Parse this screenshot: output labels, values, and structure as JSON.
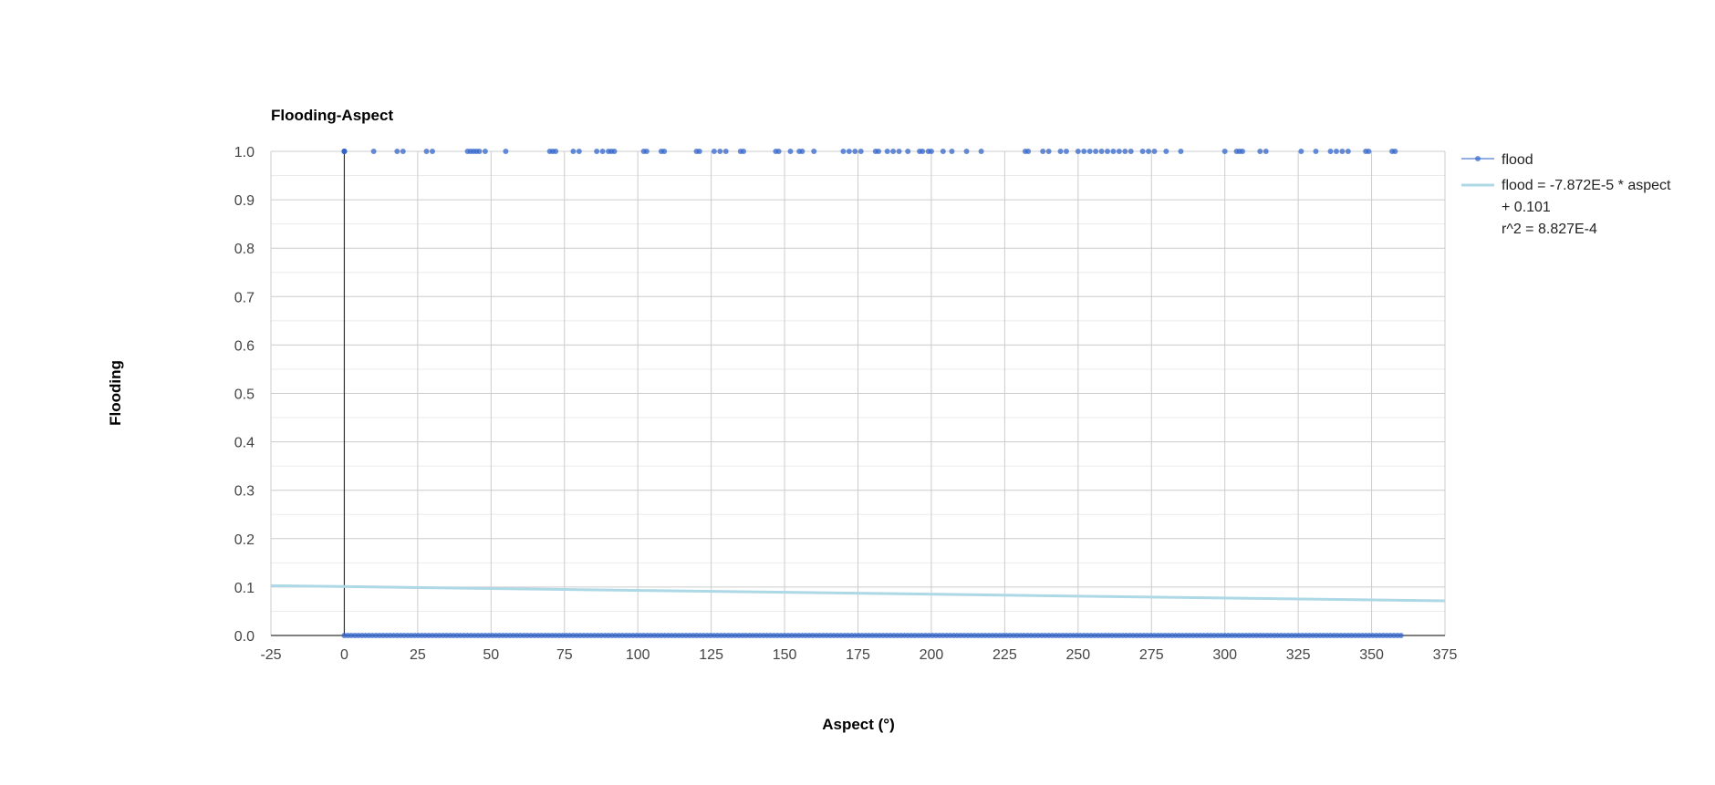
{
  "chart_data": {
    "type": "scatter",
    "title": "Flooding-Aspect",
    "xlabel": "Aspect (°)",
    "ylabel": "Flooding",
    "xlim": [
      -25,
      375
    ],
    "ylim": [
      0,
      1
    ],
    "x_ticks": [
      "-25",
      "0",
      "25",
      "50",
      "75",
      "100",
      "125",
      "150",
      "175",
      "200",
      "225",
      "250",
      "275",
      "300",
      "325",
      "350",
      "375"
    ],
    "y_ticks": [
      "0.0",
      "0.1",
      "0.2",
      "0.3",
      "0.4",
      "0.5",
      "0.6",
      "0.7",
      "0.8",
      "0.9",
      "1.0"
    ],
    "grid": true,
    "legend_position": "right",
    "colors": {
      "points": "#3366cc",
      "trendline": "#add8e6",
      "grid": "#cccccc",
      "minor_grid": "#ebebeb",
      "axis": "#333333"
    },
    "series": [
      {
        "name": "flood",
        "points_y1_x": [
          0,
          0,
          0,
          0,
          0,
          10,
          18,
          20,
          28,
          30,
          42,
          43,
          44,
          45,
          46,
          48,
          55,
          70,
          71,
          72,
          78,
          80,
          86,
          88,
          90,
          91,
          92,
          102,
          103,
          108,
          109,
          120,
          121,
          126,
          128,
          130,
          135,
          136,
          147,
          148,
          152,
          155,
          156,
          160,
          170,
          172,
          174,
          176,
          181,
          182,
          185,
          187,
          189,
          192,
          196,
          197,
          199,
          200,
          204,
          207,
          212,
          217,
          232,
          233,
          238,
          240,
          244,
          246,
          250,
          252,
          254,
          256,
          258,
          260,
          262,
          264,
          266,
          268,
          272,
          274,
          276,
          280,
          285,
          300,
          304,
          305,
          306,
          312,
          314,
          326,
          331,
          336,
          338,
          340,
          342,
          348,
          349,
          357,
          358
        ],
        "points_y0_x_dense_range": [
          0,
          360
        ]
      },
      {
        "name": "flood = -7.872E-5 * aspect + 0.101",
        "legend_lines": [
          "flood = -7.872E-5 * aspect",
          "+ 0.101",
          "r^2 = 8.827E-4"
        ],
        "trendline": {
          "slope": -7.872e-05,
          "intercept": 0.101,
          "r2": 0.0008827
        }
      }
    ]
  }
}
